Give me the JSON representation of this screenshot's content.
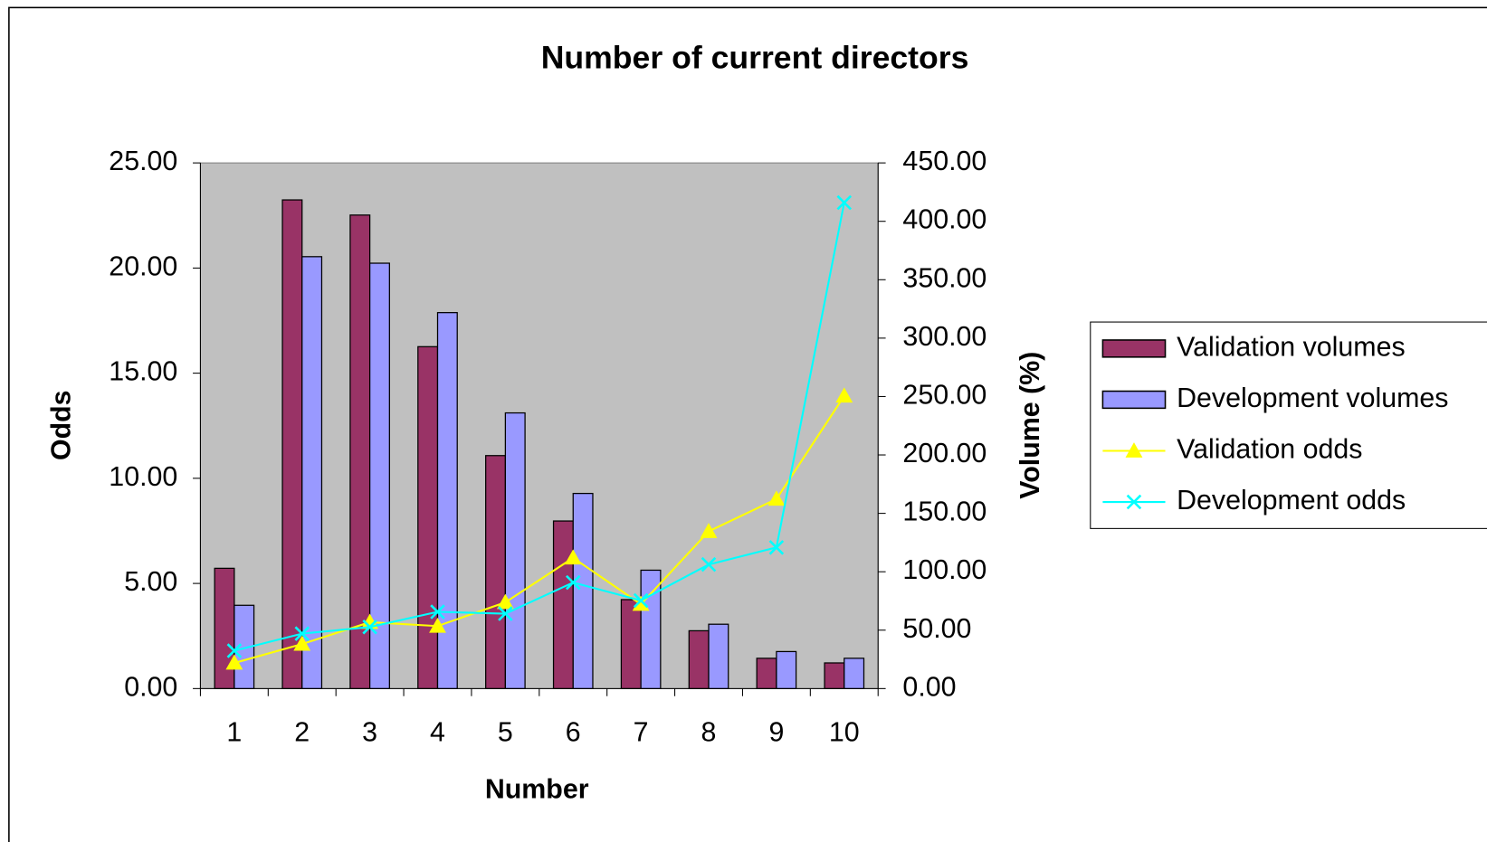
{
  "chart_data": {
    "type": "bar-line",
    "title": "Number of current directors",
    "x_label": "Number",
    "y_label": "Odds",
    "y2_label": "Volume (%)",
    "categories": [
      "1",
      "2",
      "3",
      "4",
      "5",
      "6",
      "7",
      "8",
      "9",
      "10"
    ],
    "series": [
      {
        "name": "Validation volumes",
        "type": "bar",
        "color": "#993366",
        "values": [
          5.72,
          23.24,
          22.52,
          16.26,
          11.08,
          7.97,
          4.23,
          2.75,
          1.44,
          1.22
        ]
      },
      {
        "name": "Development volumes",
        "type": "bar",
        "color": "#9999ff",
        "values": [
          3.96,
          20.54,
          20.23,
          17.88,
          13.11,
          9.28,
          5.63,
          3.06,
          1.76,
          1.44
        ]
      },
      {
        "name": "Validation odds",
        "type": "line",
        "marker": "triangle",
        "axis": "y2",
        "color": "#ffff00",
        "values": [
          21.9,
          38.1,
          56.8,
          53.5,
          73.8,
          111.9,
          72.2,
          134.6,
          162.2,
          250.5
        ]
      },
      {
        "name": "Development odds",
        "type": "line",
        "marker": "x",
        "axis": "y2",
        "color": "#00ffff",
        "values": [
          32.4,
          47.0,
          52.7,
          65.7,
          64.1,
          90.8,
          75.4,
          106.2,
          120.8,
          416.0
        ]
      }
    ],
    "ylim": [
      0,
      25
    ],
    "yticks": [
      {
        "value": 0,
        "label": "0.00"
      },
      {
        "value": 5,
        "label": "5.00"
      },
      {
        "value": 10,
        "label": "10.00"
      },
      {
        "value": 15,
        "label": "15.00"
      },
      {
        "value": 20,
        "label": "20.00"
      },
      {
        "value": 25,
        "label": "25.00"
      }
    ],
    "y2lim": [
      0,
      450
    ],
    "y2ticks": [
      {
        "value": 0,
        "label": "0.00"
      },
      {
        "value": 50,
        "label": "50.00"
      },
      {
        "value": 100,
        "label": "100.00"
      },
      {
        "value": 150,
        "label": "150.00"
      },
      {
        "value": 200,
        "label": "200.00"
      },
      {
        "value": 250,
        "label": "250.00"
      },
      {
        "value": 300,
        "label": "300.00"
      },
      {
        "value": 350,
        "label": "350.00"
      },
      {
        "value": 400,
        "label": "400.00"
      },
      {
        "value": 450,
        "label": "450.00"
      }
    ],
    "plot_background": "#c0c0c0",
    "legend": "right"
  }
}
